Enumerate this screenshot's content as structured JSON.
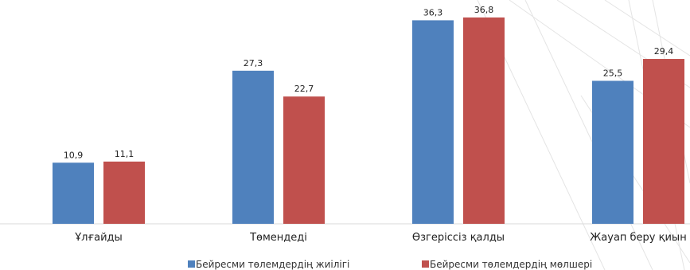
{
  "chart_data": {
    "type": "bar",
    "title": "",
    "xlabel": "",
    "ylabel": "",
    "ylim": [
      0,
      40
    ],
    "grid": false,
    "legend_position": "bottom",
    "categories": [
      "Ұлғайды",
      "Төмендеді",
      "Өзгеріссіз қалды",
      "Жауап беру қиын"
    ],
    "series": [
      {
        "name": "Бейресми төлемдердің жиілігі",
        "color": "#4f81bd",
        "values": [
          10.9,
          27.3,
          36.3,
          25.5
        ]
      },
      {
        "name": "Бейресми төлемдердің мөлшері",
        "color": "#c0504d",
        "values": [
          11.1,
          22.7,
          36.8,
          29.4
        ]
      }
    ],
    "value_labels": [
      [
        "10,9",
        "27,3",
        "36,3",
        "25,5"
      ],
      [
        "11,1",
        "22,7",
        "36,8",
        "29,4"
      ]
    ]
  }
}
